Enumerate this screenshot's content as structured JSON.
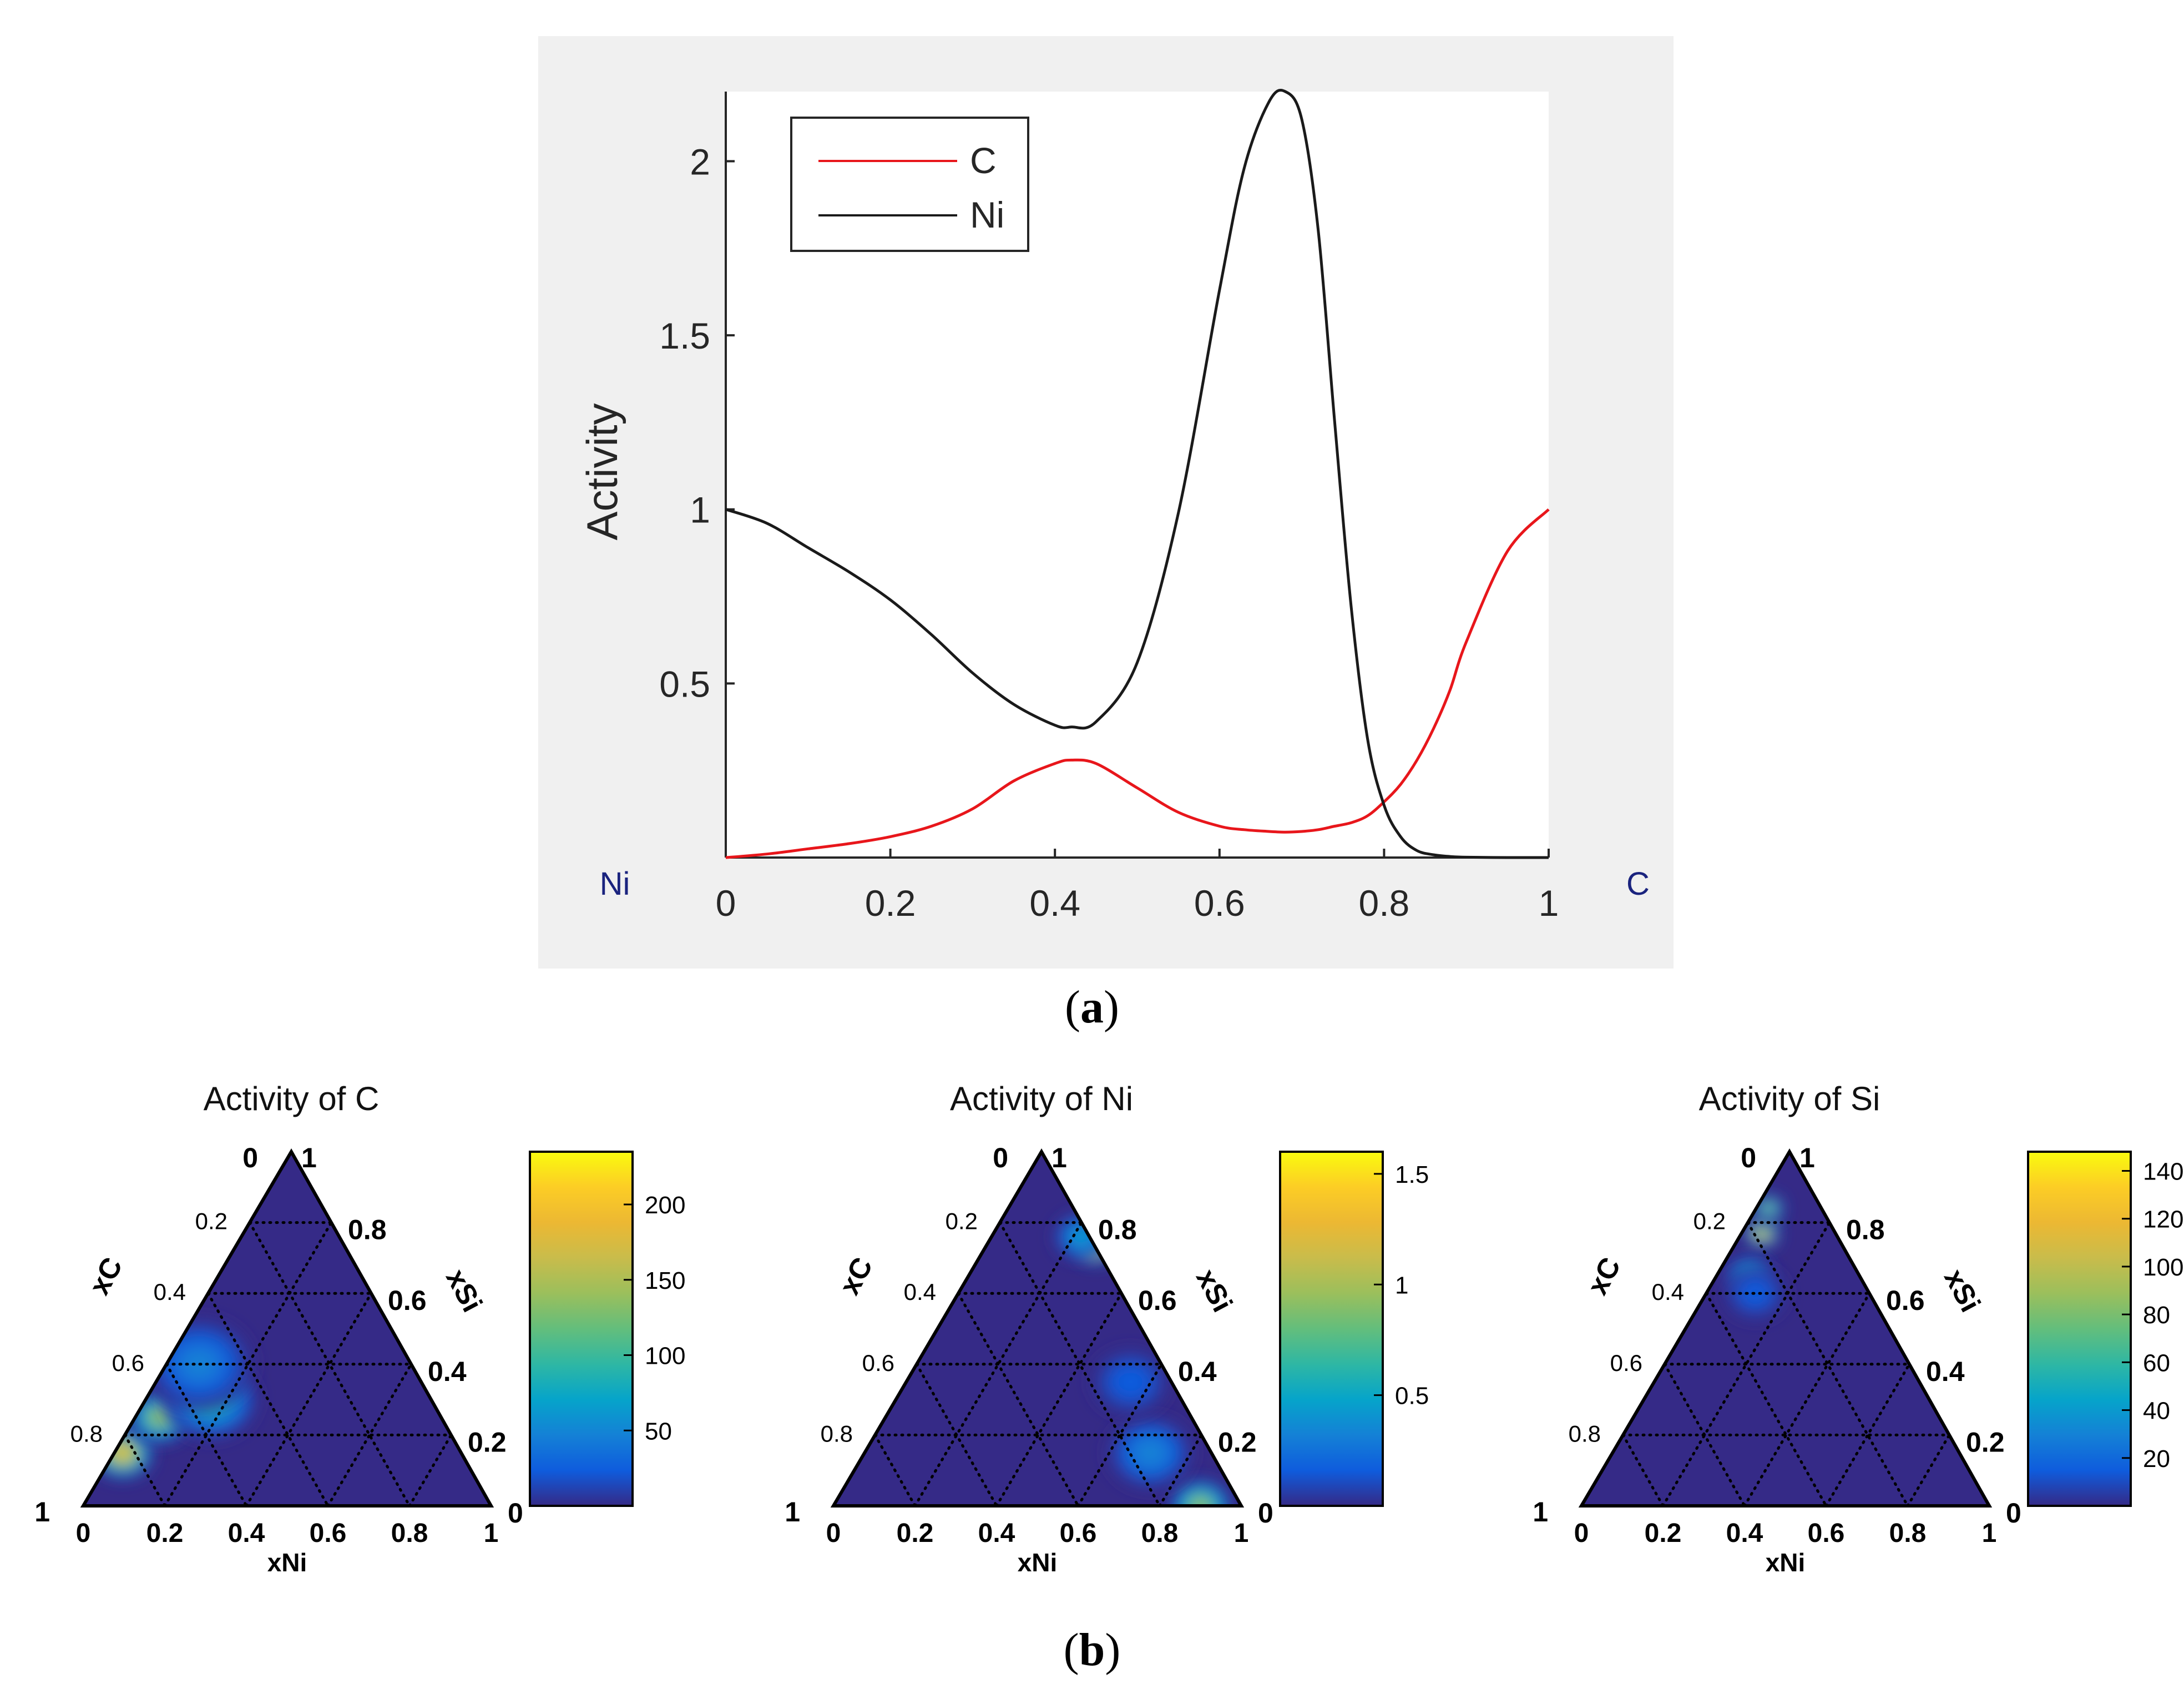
{
  "captions": {
    "a": "a",
    "b": "b"
  },
  "chart_data": [
    {
      "type": "line",
      "panel": "a",
      "xlabel": "",
      "ylabel": "Activity",
      "xlim": [
        0,
        1
      ],
      "ylim": [
        0,
        2.2
      ],
      "xticks": [
        0,
        0.2,
        0.4,
        0.6,
        0.8,
        1
      ],
      "xtick_labels": [
        "0",
        "0.2",
        "0.4",
        "0.6",
        "0.8",
        "1"
      ],
      "yticks": [
        0.5,
        1,
        1.5,
        2
      ],
      "ytick_labels": [
        "0.5",
        "1",
        "1.5",
        "2"
      ],
      "end_labels": {
        "left": "Ni",
        "right": "C"
      },
      "legend_position": "top-left",
      "x": [
        0,
        0.05,
        0.1,
        0.15,
        0.2,
        0.25,
        0.3,
        0.35,
        0.4,
        0.42,
        0.45,
        0.5,
        0.55,
        0.6,
        0.63,
        0.66,
        0.68,
        0.7,
        0.72,
        0.74,
        0.76,
        0.78,
        0.8,
        0.82,
        0.84,
        0.86,
        0.88,
        0.9,
        0.95,
        1
      ],
      "series": [
        {
          "name": "C",
          "color": "#e8161b",
          "values": [
            0.0,
            0.01,
            0.025,
            0.04,
            0.06,
            0.09,
            0.14,
            0.22,
            0.27,
            0.28,
            0.27,
            0.2,
            0.13,
            0.09,
            0.08,
            0.075,
            0.073,
            0.075,
            0.08,
            0.09,
            0.1,
            0.12,
            0.16,
            0.21,
            0.28,
            0.37,
            0.48,
            0.62,
            0.88,
            1.0
          ]
        },
        {
          "name": "Ni",
          "color": "#1a1a1a",
          "values": [
            1.0,
            0.96,
            0.89,
            0.82,
            0.74,
            0.64,
            0.53,
            0.44,
            0.38,
            0.375,
            0.39,
            0.56,
            0.99,
            1.63,
            1.98,
            2.17,
            2.2,
            2.12,
            1.8,
            1.25,
            0.72,
            0.34,
            0.15,
            0.06,
            0.02,
            0.008,
            0.003,
            0.001,
            0.0,
            0.0
          ]
        }
      ]
    },
    {
      "type": "heatmap",
      "panel": "b",
      "title": "Activity of C",
      "xlabel": "xNi",
      "left_axis_label": "xC",
      "right_axis_label": "xSi",
      "bottom_tick_labels": [
        "0",
        "0.2",
        "0.4",
        "0.6",
        "0.8",
        "1"
      ],
      "left_tick_labels": [
        "0",
        "0.2",
        "0.4",
        "0.6",
        "0.8",
        "1"
      ],
      "right_tick_labels": [
        "1",
        "0.8",
        "0.6",
        "0.4",
        "0.2",
        "0"
      ],
      "colorbar": {
        "range": [
          0,
          235
        ],
        "ticks": [
          50,
          100,
          150,
          200
        ],
        "tick_labels": [
          "50",
          "100",
          "150",
          "200"
        ]
      },
      "hotspots": [
        {
          "xNi": 0.02,
          "xC": 0.15,
          "value": 235,
          "spread": 0.08
        },
        {
          "xNi": 0.06,
          "xC": 0.25,
          "value": 175,
          "spread": 0.08
        },
        {
          "xNi": 0.16,
          "xC": 0.3,
          "value": 110,
          "spread": 0.12
        },
        {
          "xNi": 0.08,
          "xC": 0.4,
          "value": 60,
          "spread": 0.14
        }
      ]
    },
    {
      "type": "heatmap",
      "panel": "b",
      "title": "Activity of Ni",
      "xlabel": "xNi",
      "left_axis_label": "xC",
      "right_axis_label": "xSi",
      "bottom_tick_labels": [
        "0",
        "0.2",
        "0.4",
        "0.6",
        "0.8",
        "1"
      ],
      "left_tick_labels": [
        "0",
        "0.2",
        "0.4",
        "0.6",
        "0.8",
        "1"
      ],
      "right_tick_labels": [
        "1",
        "0.8",
        "0.6",
        "0.4",
        "0.2",
        "0"
      ],
      "colorbar": {
        "range": [
          0,
          1.6
        ],
        "ticks": [
          0.5,
          1,
          1.5
        ],
        "tick_labels": [
          "0.5",
          "1",
          "1.5"
        ]
      },
      "hotspots": [
        {
          "xNi": 0.27,
          "xC": 0.73,
          "value": 1.6,
          "spread": 0.05
        },
        {
          "xNi": 0.22,
          "xC": 0.76,
          "value": 0.6,
          "spread": 0.07
        },
        {
          "xNi": 0.9,
          "xC": 0.0,
          "value": 1.15,
          "spread": 0.08
        },
        {
          "xNi": 0.7,
          "xC": 0.15,
          "value": 0.45,
          "spread": 0.11
        },
        {
          "xNi": 0.55,
          "xC": 0.35,
          "value": 0.28,
          "spread": 0.1
        }
      ]
    },
    {
      "type": "heatmap",
      "panel": "b",
      "title": "Activity of Si",
      "xlabel": "xNi",
      "left_axis_label": "xC",
      "right_axis_label": "xSi",
      "bottom_tick_labels": [
        "0",
        "0.2",
        "0.4",
        "0.6",
        "0.8",
        "1"
      ],
      "left_tick_labels": [
        "0",
        "0.2",
        "0.4",
        "0.6",
        "0.8",
        "1"
      ],
      "right_tick_labels": [
        "1",
        "0.8",
        "0.6",
        "0.4",
        "0.2",
        "0"
      ],
      "colorbar": {
        "range": [
          0,
          148
        ],
        "ticks": [
          20,
          40,
          60,
          80,
          100,
          120,
          140
        ],
        "tick_labels": [
          "20",
          "40",
          "60",
          "80",
          "100",
          "120",
          "140"
        ]
      },
      "hotspots": [
        {
          "xNi": 0.05,
          "xC": 0.77,
          "value": 148,
          "spread": 0.045
        },
        {
          "xNi": 0.03,
          "xC": 0.84,
          "value": 110,
          "spread": 0.04
        },
        {
          "xNi": 0.08,
          "xC": 0.65,
          "value": 60,
          "spread": 0.06
        },
        {
          "xNi": 0.12,
          "xC": 0.6,
          "value": 25,
          "spread": 0.08
        }
      ]
    }
  ]
}
